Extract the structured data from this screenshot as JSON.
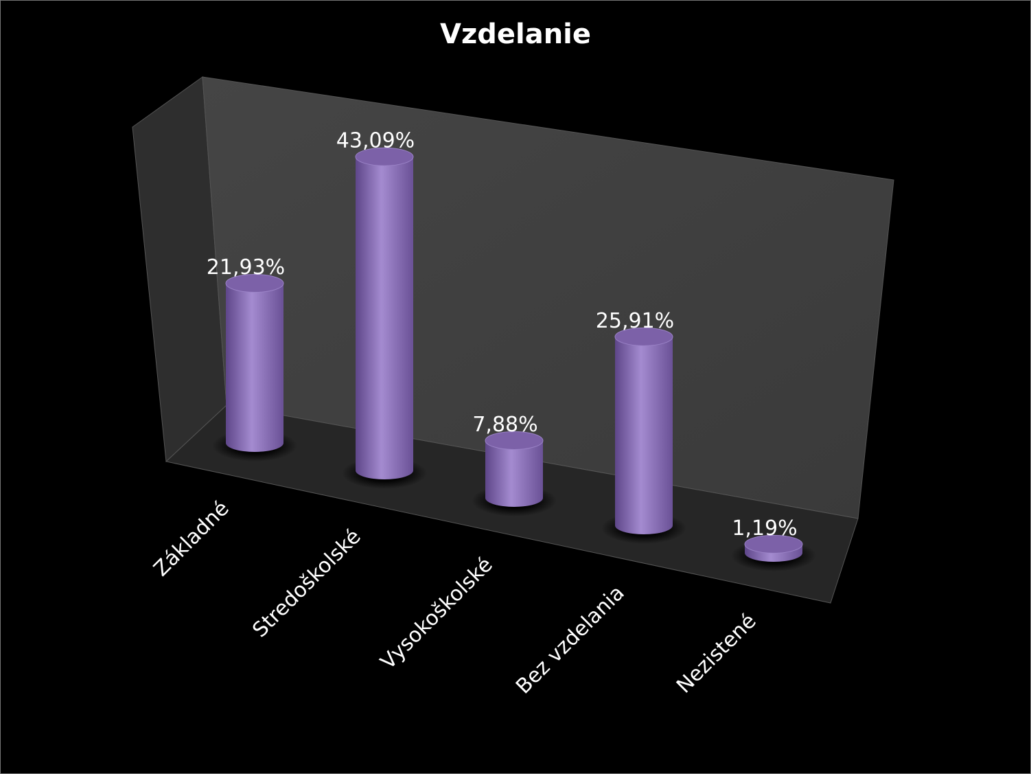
{
  "chart_data": {
    "type": "bar3d",
    "title": "Vzdelanie",
    "categories": [
      "Základné",
      "Stredoškolské",
      "Vysokoškolské",
      "Bez vzdelania",
      "Nezistené"
    ],
    "values": [
      21.93,
      43.09,
      7.88,
      25.91,
      1.19
    ],
    "value_labels": [
      "21,93%",
      "43,09%",
      "7,88%",
      "25,91%",
      "1,19%"
    ],
    "color": "#8767b3"
  }
}
